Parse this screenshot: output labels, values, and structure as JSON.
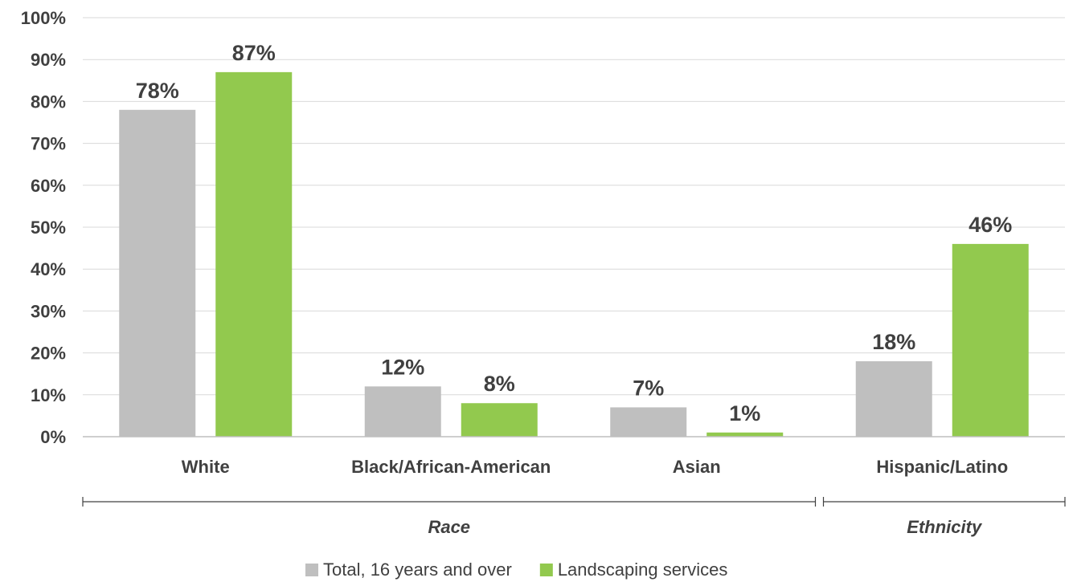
{
  "chart_data": {
    "type": "bar",
    "categories": [
      "White",
      "Black/African-American",
      "Asian",
      "Hispanic/Latino"
    ],
    "series": [
      {
        "name": "Total, 16 years and over",
        "values": [
          78,
          12,
          7,
          18
        ],
        "labels": [
          "78%",
          "12%",
          "7%",
          "18%"
        ],
        "color": "#bfbfbf"
      },
      {
        "name": "Landscaping services",
        "values": [
          87,
          8,
          1,
          46
        ],
        "labels": [
          "87%",
          "8%",
          "1%",
          "46%"
        ],
        "color": "#92c94e"
      }
    ],
    "ylim": [
      0,
      100
    ],
    "yticks": [
      "0%",
      "10%",
      "20%",
      "30%",
      "40%",
      "50%",
      "60%",
      "70%",
      "80%",
      "90%",
      "100%"
    ],
    "grid": true,
    "groups": [
      {
        "label": "Race",
        "categories": [
          "White",
          "Black/African-American",
          "Asian"
        ]
      },
      {
        "label": "Ethnicity",
        "categories": [
          "Hispanic/Latino"
        ]
      }
    ],
    "legend_position": "bottom",
    "title": "",
    "xlabel": "",
    "ylabel": ""
  }
}
